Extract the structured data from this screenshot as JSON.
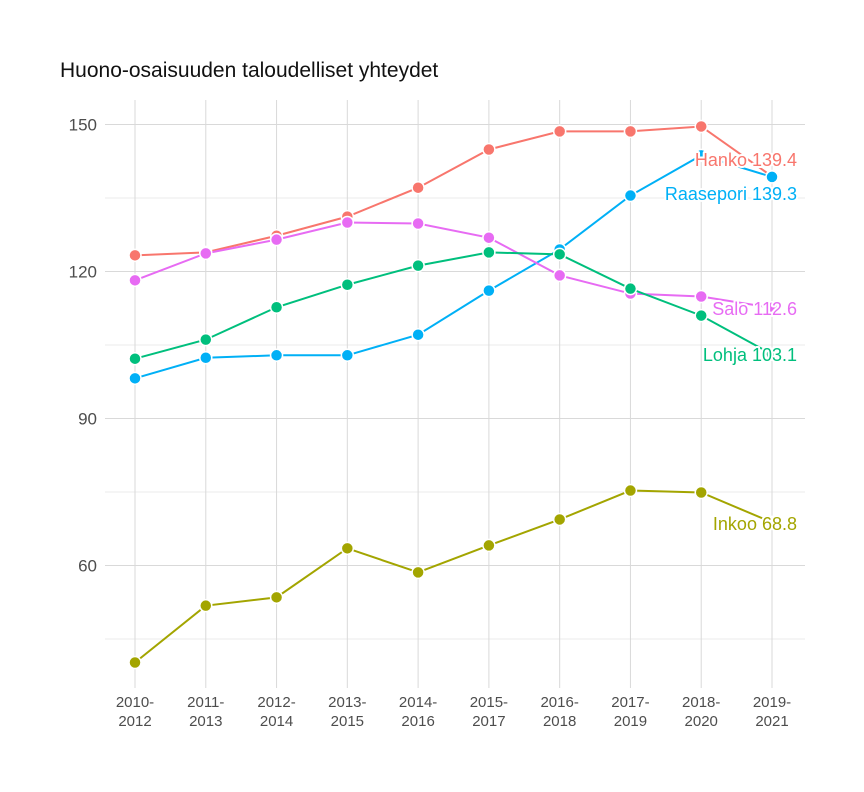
{
  "chart_data": {
    "type": "line",
    "title": "Huono-osaisuuden taloudelliset yhteydet",
    "xlabel": "",
    "ylabel": "",
    "categories": [
      "2010-\n2012",
      "2011-\n2013",
      "2012-\n2014",
      "2013-\n2015",
      "2014-\n2016",
      "2015-\n2017",
      "2016-\n2018",
      "2017-\n2019",
      "2018-\n2020",
      "2019-\n2021"
    ],
    "ylim": [
      35,
      155
    ],
    "yticks": [
      60,
      90,
      120,
      150
    ],
    "grid": true,
    "legend": "none (direct labels at line ends)",
    "series": [
      {
        "name": "Hanko",
        "color": "#F8766D",
        "values": [
          123.3,
          123.9,
          127.3,
          131.2,
          137.1,
          144.9,
          148.6,
          148.6,
          149.6,
          139.4
        ],
        "end_label": "Hanko 139.4"
      },
      {
        "name": "Raasepori",
        "color": "#00B0F6",
        "values": [
          98.2,
          102.4,
          102.9,
          102.9,
          107.1,
          116.1,
          124.5,
          135.5,
          143.7,
          139.3
        ],
        "end_label": "Raasepori 139.3"
      },
      {
        "name": "Salo",
        "color": "#E76BF3",
        "values": [
          118.2,
          123.7,
          126.5,
          130.0,
          129.8,
          126.9,
          119.2,
          115.5,
          114.9,
          112.6
        ],
        "end_label": "Salo 112.6"
      },
      {
        "name": "Lohja",
        "color": "#00BF7D",
        "values": [
          102.2,
          106.1,
          112.7,
          117.3,
          121.2,
          123.9,
          123.5,
          116.5,
          111.0,
          103.1
        ],
        "end_label": "Lohja 103.1"
      },
      {
        "name": "Inkoo",
        "color": "#A3A500",
        "values": [
          40.2,
          51.8,
          53.5,
          63.5,
          58.6,
          64.1,
          69.4,
          75.3,
          74.9,
          68.8
        ],
        "end_label": "Inkoo 68.8"
      }
    ]
  }
}
